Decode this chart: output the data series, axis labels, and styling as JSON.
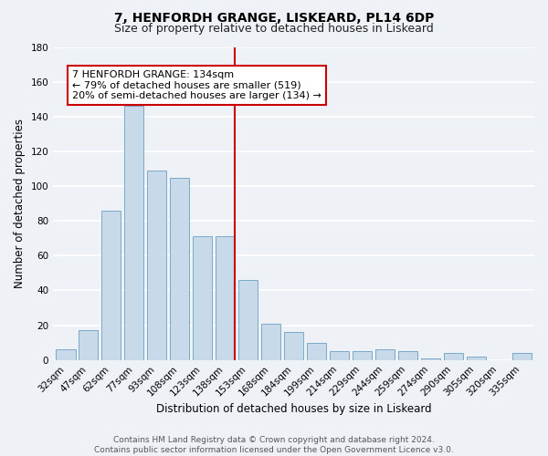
{
  "title": "7, HENFORDH GRANGE, LISKEARD, PL14 6DP",
  "subtitle": "Size of property relative to detached houses in Liskeard",
  "xlabel": "Distribution of detached houses by size in Liskeard",
  "ylabel": "Number of detached properties",
  "categories": [
    "32sqm",
    "47sqm",
    "62sqm",
    "77sqm",
    "93sqm",
    "108sqm",
    "123sqm",
    "138sqm",
    "153sqm",
    "168sqm",
    "184sqm",
    "199sqm",
    "214sqm",
    "229sqm",
    "244sqm",
    "259sqm",
    "274sqm",
    "290sqm",
    "305sqm",
    "320sqm",
    "335sqm"
  ],
  "values": [
    6,
    17,
    86,
    146,
    109,
    105,
    71,
    71,
    46,
    21,
    16,
    10,
    5,
    5,
    6,
    5,
    1,
    4,
    2,
    0,
    4
  ],
  "bar_color": "#c8daea",
  "bar_edge_color": "#7aaac8",
  "vline_color": "#cc0000",
  "vline_index": 7,
  "ylim": [
    0,
    180
  ],
  "yticks": [
    0,
    20,
    40,
    60,
    80,
    100,
    120,
    140,
    160,
    180
  ],
  "annotation_title": "7 HENFORDH GRANGE: 134sqm",
  "annotation_line1": "← 79% of detached houses are smaller (519)",
  "annotation_line2": "20% of semi-detached houses are larger (134) →",
  "annotation_box_facecolor": "#ffffff",
  "annotation_box_edgecolor": "#cc0000",
  "footer1": "Contains HM Land Registry data © Crown copyright and database right 2024.",
  "footer2": "Contains public sector information licensed under the Open Government Licence v3.0.",
  "background_color": "#eef2f7",
  "grid_color": "#ffffff",
  "title_fontsize": 10,
  "subtitle_fontsize": 9,
  "xlabel_fontsize": 8.5,
  "ylabel_fontsize": 8.5,
  "tick_fontsize": 7.5,
  "annotation_fontsize": 8,
  "footer_fontsize": 6.5
}
